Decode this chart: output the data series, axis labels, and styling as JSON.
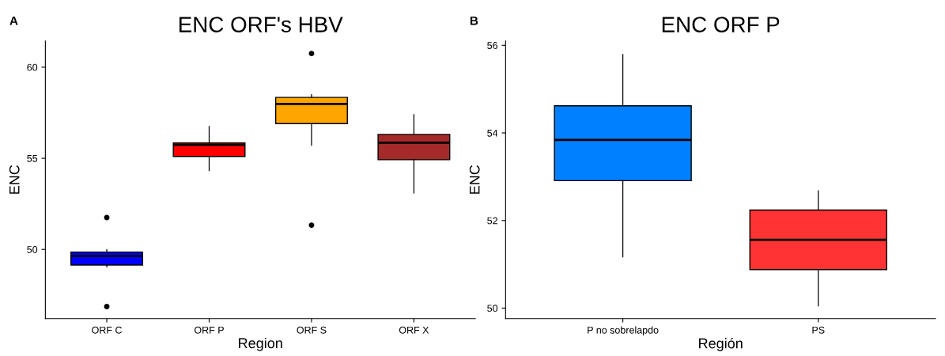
{
  "chart_data": [
    {
      "type": "box",
      "title": "ENC ORF's HBV",
      "xlabel": "Region",
      "ylabel": "ENC",
      "annotations": [
        "A"
      ],
      "categories": [
        "ORF C",
        "ORF P",
        "ORF S",
        "ORF X"
      ],
      "colors": [
        "#0000ff",
        "#ff0000",
        "#ffa500",
        "#a52a2a"
      ],
      "boxes": [
        {
          "low": 49.04,
          "q1": 49.14,
          "median": 49.64,
          "q3": 49.85,
          "high": 49.98,
          "outliers": [
            51.75,
            46.86
          ]
        },
        {
          "low": 54.32,
          "q1": 55.1,
          "median": 55.74,
          "q3": 55.84,
          "high": 56.75
        },
        {
          "low": 55.71,
          "q1": 56.9,
          "median": 57.98,
          "q3": 58.34,
          "high": 58.49,
          "outliers": [
            60.75,
            51.33
          ]
        },
        {
          "low": 53.1,
          "q1": 54.92,
          "median": 55.86,
          "q3": 56.31,
          "high": 57.4
        }
      ],
      "ylim": [
        46.2,
        61.44
      ],
      "yticks": [
        50,
        55,
        60
      ],
      "grid": false,
      "legend": false
    },
    {
      "type": "box",
      "title": "ENC ORF P",
      "xlabel": "Región",
      "ylabel": "ENC",
      "annotations": [
        "B"
      ],
      "categories": [
        "P no sobrelapdo",
        "PS"
      ],
      "colors": [
        "#007fff",
        "#ff3333"
      ],
      "boxes": [
        {
          "low": 51.17,
          "q1": 52.91,
          "median": 53.84,
          "q3": 54.62,
          "high": 55.79
        },
        {
          "low": 50.05,
          "q1": 50.88,
          "median": 51.56,
          "q3": 52.24,
          "high": 52.68
        }
      ],
      "ylim": [
        49.76,
        56.1
      ],
      "yticks": [
        50,
        52,
        54,
        56
      ],
      "grid": false,
      "legend": false
    }
  ]
}
